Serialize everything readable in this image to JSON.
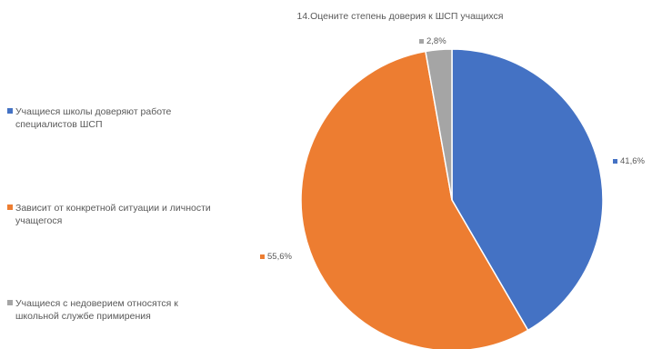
{
  "chart_data": {
    "type": "pie",
    "title": "14.Оцените степень доверия к ШСП учащихся",
    "legend_position": "left",
    "slices": [
      {
        "label": "Учащиеся школы доверяют работе специалистов ШСП",
        "value": 41.6,
        "value_label": "41,6%",
        "color": "#4472C4"
      },
      {
        "label": "Зависит от конкретной ситуации и личности учащегося",
        "value": 55.6,
        "value_label": "55,6%",
        "color": "#ED7D31"
      },
      {
        "label": "Учащиеся с недоверием относятся к школьной службе примирения",
        "value": 2.8,
        "value_label": "2,8%",
        "color": "#A5A5A5"
      }
    ]
  }
}
